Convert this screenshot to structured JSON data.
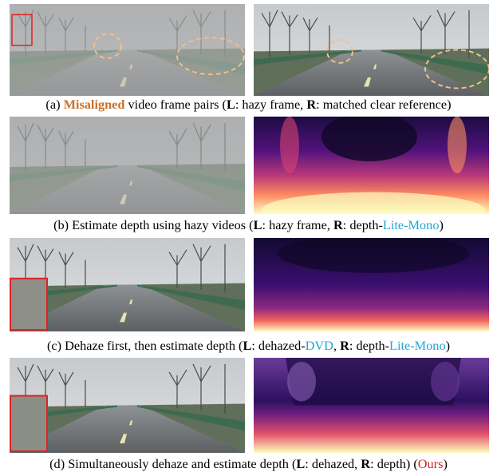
{
  "captions": [
    {
      "segments": [
        "(a) ",
        "Misaligned",
        " video frame pairs (",
        "L",
        ": hazy frame, ",
        "R",
        ": matched clear reference)"
      ]
    },
    {
      "segments": [
        "(b) Estimate depth using hazy videos (",
        "L",
        ": hazy frame, ",
        "R",
        ": depth-",
        "Lite-Mono",
        ")"
      ]
    },
    {
      "segments": [
        "(c) Dehaze first, then estimate depth (",
        "L",
        ": dehazed-",
        "DVD",
        ", ",
        "R",
        ": depth-",
        "Lite-Mono",
        ")"
      ]
    },
    {
      "segments": [
        "(d) Simultaneously dehaze and estimate depth (",
        "L",
        ": dehazed, ",
        "R",
        ": depth) (",
        "Ours",
        ")"
      ]
    }
  ]
}
